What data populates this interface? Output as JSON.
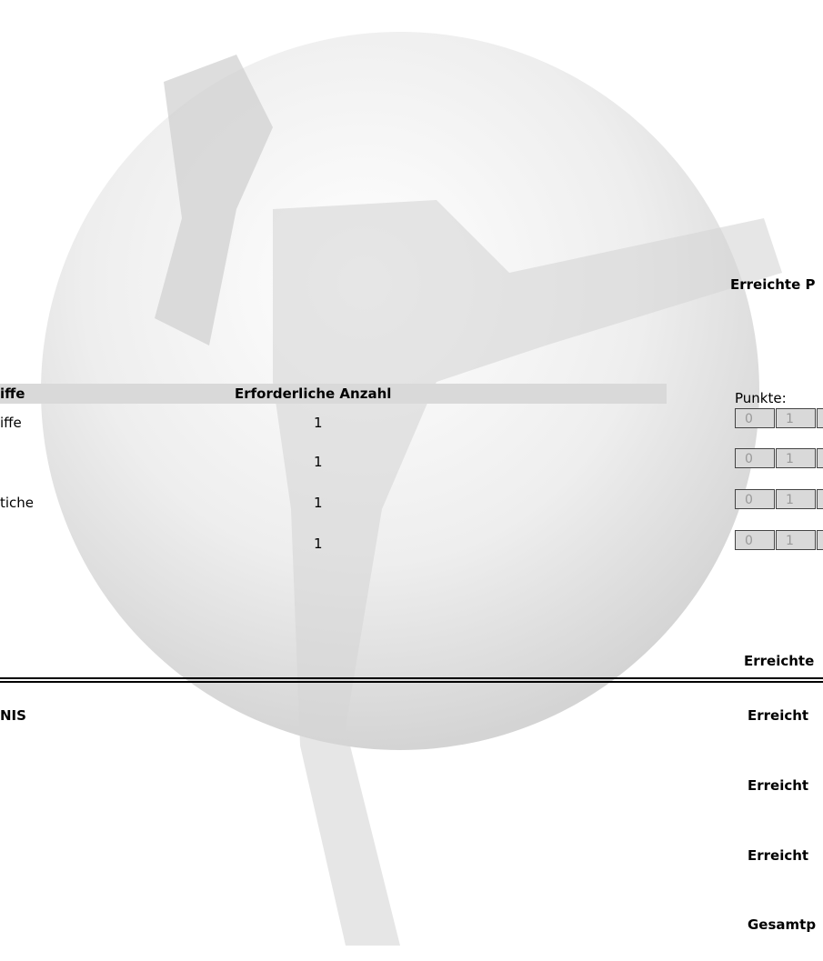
{
  "points_title": "Erreichte P",
  "table": {
    "header": [
      "iffe",
      "Erforderliche Anzahl"
    ],
    "rows": [
      [
        "iffe",
        "1"
      ],
      [
        "",
        "1"
      ],
      [
        "tiche",
        "1"
      ],
      [
        "",
        "1"
      ]
    ]
  },
  "points_label": "Punkte:",
  "score_rows": [
    [
      "0",
      "1"
    ],
    [
      "0",
      "1"
    ],
    [
      "0",
      "1"
    ],
    [
      "0",
      "1"
    ]
  ],
  "achieved_label": "Erreichte",
  "summary": {
    "left_title": "NIS",
    "lines": [
      "Erreicht",
      "Erreicht",
      "Erreicht",
      "Gesamtp"
    ]
  }
}
